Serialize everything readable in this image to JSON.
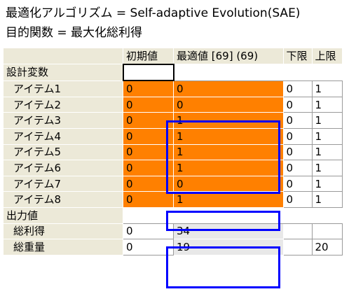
{
  "header": {
    "algorithm_line": "最適化アルゴリズム = Self-adaptive Evolution(SAE)",
    "objective_line": "目的関数 = 最大化総利得"
  },
  "columns": [
    "",
    "初期値",
    "最適値 [69] (69)",
    "下限",
    "上限"
  ],
  "sections": {
    "design_vars": "設計変数",
    "outputs": "出力値"
  },
  "items": [
    {
      "name": "アイテム1",
      "initial": "0",
      "optimal": "0",
      "lower": "0",
      "upper": "1"
    },
    {
      "name": "アイテム2",
      "initial": "0",
      "optimal": "0",
      "lower": "0",
      "upper": "1"
    },
    {
      "name": "アイテム3",
      "initial": "0",
      "optimal": "1",
      "lower": "0",
      "upper": "1"
    },
    {
      "name": "アイテム4",
      "initial": "0",
      "optimal": "1",
      "lower": "0",
      "upper": "1"
    },
    {
      "name": "アイテム5",
      "initial": "0",
      "optimal": "1",
      "lower": "0",
      "upper": "1"
    },
    {
      "name": "アイテム6",
      "initial": "0",
      "optimal": "1",
      "lower": "0",
      "upper": "1"
    },
    {
      "name": "アイテム7",
      "initial": "0",
      "optimal": "0",
      "lower": "0",
      "upper": "1"
    },
    {
      "name": "アイテム8",
      "initial": "0",
      "optimal": "1",
      "lower": "0",
      "upper": "1"
    }
  ],
  "outputs": [
    {
      "name": "総利得",
      "initial": "0",
      "optimal": "34",
      "lower": "",
      "upper": ""
    },
    {
      "name": "総重量",
      "initial": "0",
      "optimal": "19",
      "lower": "",
      "upper": "20"
    }
  ],
  "colors": {
    "header_bg": "#ece9d8",
    "variable_cell": "#ff8000",
    "output_cell": "#e8e8e8",
    "highlight_box": "#0000ff"
  }
}
